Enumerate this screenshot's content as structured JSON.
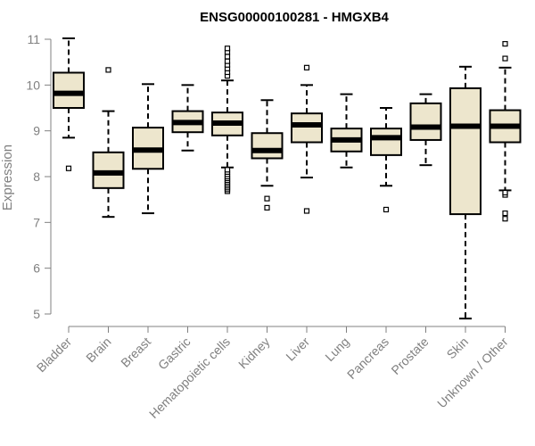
{
  "chart_data": {
    "type": "boxplot",
    "title": "ENSG00000100281 - HMGXB4",
    "ylabel": "Expression",
    "xlabel": "",
    "ylim": [
      4.8,
      11.1
    ],
    "yticks": [
      5,
      6,
      7,
      8,
      9,
      10,
      11
    ],
    "grid": false,
    "colors": {
      "box_fill": "#ede6cd",
      "stroke": "#000000",
      "axis": "#808080",
      "title": "#000000"
    },
    "categories": [
      "Bladder",
      "Brain",
      "Breast",
      "Gastric",
      "Hematopoietic cells",
      "Kidney",
      "Liver",
      "Lung",
      "Pancreas",
      "Prostate",
      "Skin",
      "Unknown / Other"
    ],
    "boxes": [
      {
        "whisker_low": 8.85,
        "q1": 9.5,
        "median": 9.82,
        "q3": 10.27,
        "whisker_high": 11.02,
        "outliers": [
          8.18
        ]
      },
      {
        "whisker_low": 7.12,
        "q1": 7.75,
        "median": 8.08,
        "q3": 8.53,
        "whisker_high": 9.43,
        "outliers": [
          10.33
        ]
      },
      {
        "whisker_low": 7.2,
        "q1": 8.17,
        "median": 8.58,
        "q3": 9.07,
        "whisker_high": 10.02,
        "outliers": []
      },
      {
        "whisker_low": 8.57,
        "q1": 8.97,
        "median": 9.18,
        "q3": 9.43,
        "whisker_high": 10.0,
        "outliers": []
      },
      {
        "whisker_low": 8.2,
        "q1": 8.9,
        "median": 9.17,
        "q3": 9.4,
        "whisker_high": 10.1,
        "outliers": [
          7.68,
          7.72,
          7.76,
          7.8,
          7.84,
          7.88,
          7.92,
          7.96,
          8.0,
          8.05,
          8.1,
          8.15,
          10.2,
          10.28,
          10.36,
          10.44,
          10.52,
          10.62,
          10.72,
          10.8
        ]
      },
      {
        "whisker_low": 7.8,
        "q1": 8.4,
        "median": 8.57,
        "q3": 8.95,
        "whisker_high": 9.67,
        "outliers": [
          7.52,
          7.32
        ]
      },
      {
        "whisker_low": 7.98,
        "q1": 8.75,
        "median": 9.13,
        "q3": 9.38,
        "whisker_high": 10.0,
        "outliers": [
          7.25,
          10.38
        ]
      },
      {
        "whisker_low": 8.2,
        "q1": 8.55,
        "median": 8.8,
        "q3": 9.05,
        "whisker_high": 9.8,
        "outliers": []
      },
      {
        "whisker_low": 7.8,
        "q1": 8.47,
        "median": 8.85,
        "q3": 9.05,
        "whisker_high": 9.5,
        "outliers": [
          7.28
        ]
      },
      {
        "whisker_low": 8.25,
        "q1": 8.8,
        "median": 9.08,
        "q3": 9.6,
        "whisker_high": 9.8,
        "outliers": []
      },
      {
        "whisker_low": 4.9,
        "q1": 7.18,
        "median": 9.1,
        "q3": 9.93,
        "whisker_high": 10.4,
        "outliers": []
      },
      {
        "whisker_low": 7.7,
        "q1": 8.75,
        "median": 9.1,
        "q3": 9.45,
        "whisker_high": 10.38,
        "outliers": [
          7.6,
          7.65,
          7.2,
          7.08,
          10.58,
          10.9
        ]
      }
    ]
  }
}
